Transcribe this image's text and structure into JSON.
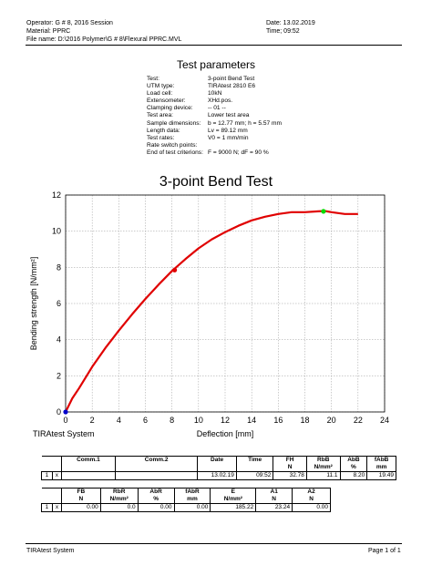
{
  "header": {
    "operator": "Operator: G # 8, 2016 Session",
    "material": "Material: PPRC",
    "file_name": "File name: D:\\2016 Polymer\\G # 8\\Flexural PPRC.MVL",
    "date": "Date: 13.02.2019",
    "time": "Time; 09:52"
  },
  "test_parameters": {
    "title": "Test parameters",
    "rows": [
      {
        "k": "Test:",
        "v": "3-point Bend Test"
      },
      {
        "k": "UTM type:",
        "v": "TIRAtest 2810 E6"
      },
      {
        "k": "Load cell:",
        "v": "10kN"
      },
      {
        "k": "Extensometer:",
        "v": "XHd.pos."
      },
      {
        "k": "Clamping device:",
        "v": "-- 01 --"
      },
      {
        "k": "Test area:",
        "v": "Lower test area"
      },
      {
        "k": "Sample dimensions:",
        "v": "b = 12.77 mm; h = 5.57 mm"
      },
      {
        "k": "Length data:",
        "v": "Lv = 89.12 mm"
      },
      {
        "k": "Test rates:",
        "v": "V0 = 1 mm/min"
      },
      {
        "k": "Rate switch points:",
        "v": ""
      },
      {
        "k": "End of test criterions:",
        "v": "F = 9000 N; dF = 90 %"
      }
    ]
  },
  "chart_data": {
    "type": "line",
    "title": "3-point Bend Test",
    "xlabel": "Deflection [mm]",
    "ylabel": "Bending strength [N/mm²]",
    "footer_label": "TIRAtest System",
    "xlim": [
      0,
      24
    ],
    "ylim": [
      0,
      12
    ],
    "xticks": [
      "0",
      "2",
      "4",
      "6",
      "8",
      "10",
      "12",
      "14",
      "16",
      "18",
      "20",
      "22",
      "24"
    ],
    "yticks": [
      "0",
      "2",
      "4",
      "6",
      "8",
      "10",
      "12"
    ],
    "grid": true,
    "series": [
      {
        "color": "#e00000",
        "x": [
          0,
          0.5,
          1,
          2,
          3,
          4,
          5,
          6,
          7,
          8,
          9,
          10,
          11,
          12,
          13,
          14,
          15,
          16,
          17,
          18,
          19,
          19.5,
          20,
          21,
          22
        ],
        "y": [
          0,
          0.75,
          1.3,
          2.5,
          3.55,
          4.5,
          5.4,
          6.25,
          7.05,
          7.8,
          8.45,
          9.05,
          9.55,
          9.95,
          10.3,
          10.6,
          10.8,
          10.95,
          11.05,
          11.05,
          11.1,
          11.12,
          11.05,
          10.95,
          10.95
        ]
      }
    ],
    "markers": [
      {
        "name": "start-point",
        "x": 0,
        "y": 0,
        "color": "#0000cc"
      },
      {
        "name": "mid-point",
        "x": 8.2,
        "y": 7.85,
        "color": "#e00000"
      },
      {
        "name": "max-point",
        "x": 19.4,
        "y": 11.1,
        "color": "#00dd00"
      }
    ]
  },
  "results_table_1": {
    "headers_top": [
      "Comm.1",
      "Comm.2",
      "Date",
      "Time",
      "FH",
      "RbB",
      "AbB",
      "fAbB"
    ],
    "headers_unit": [
      "",
      "",
      "",
      "",
      "N",
      "N/mm²",
      "%",
      "mm"
    ],
    "row": {
      "index": "1",
      "mark": "x",
      "comm1": "",
      "comm2": "",
      "date": "13.02.19",
      "time": "09:52",
      "fh": "32.78",
      "rbb": "11.1",
      "abb": "8.20",
      "fabb": "19.49"
    }
  },
  "results_table_2": {
    "headers_top": [
      "FB",
      "RbR",
      "AbR",
      "fAbR",
      "E",
      "A1",
      "A2"
    ],
    "headers_unit": [
      "N",
      "N/mm²",
      "%",
      "mm",
      "N/mm²",
      "N",
      "N"
    ],
    "row": {
      "index": "1",
      "mark": "x",
      "fb": "0.00",
      "rbr": "0.0",
      "abr": "0.00",
      "fabr": "0.00",
      "e": "185.22",
      "a1": "23.24",
      "a2": "0.00"
    }
  },
  "footer": {
    "left": "TIRAtest System",
    "right": "Page 1 of 1"
  }
}
